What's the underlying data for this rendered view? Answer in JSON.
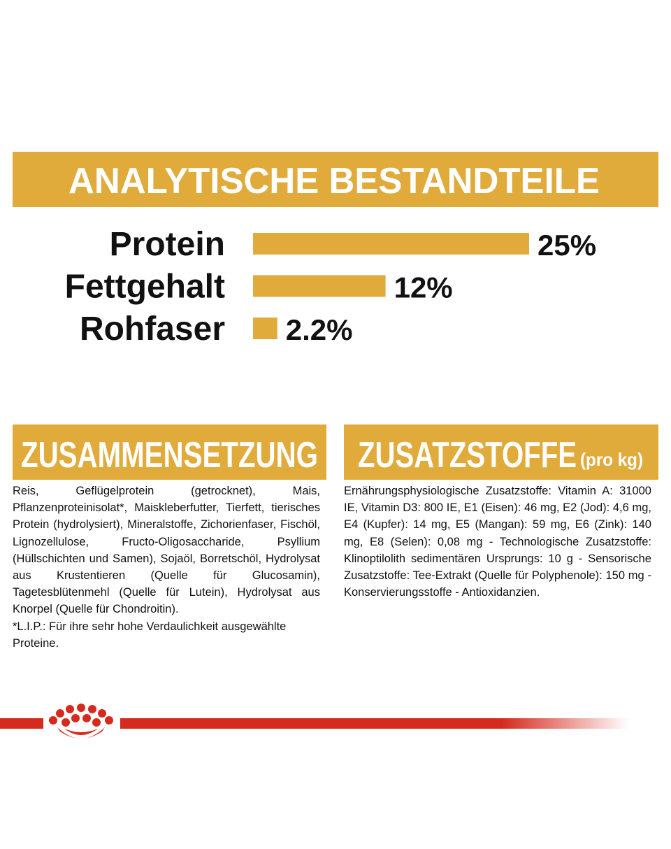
{
  "chart_data": {
    "type": "bar",
    "orientation": "horizontal",
    "title": "ANALYTISCHE BESTANDTEILE",
    "categories": [
      "Protein",
      "Fettgehalt",
      "Rohfaser"
    ],
    "values": [
      25,
      12,
      2.2
    ],
    "value_labels": [
      "25%",
      "12%",
      "2.2%"
    ],
    "color": "#e0ab3a"
  },
  "composition": {
    "title": "ZUSAMMENSETZUNG",
    "text": "Reis, Geflügelprotein (getrocknet), Mais, Pflanzenproteinisolat*, Maiskleberfutter, Tierfett, tierisches Protein (hydrolysiert), Mineralstoffe, Zichorienfaser, Fischöl, Lignozellulose, Fructo-Oligosaccharide, Psyllium (Hüllschichten und Samen), Sojaöl, Borretschöl, Hydrolysat aus Krustentieren (Quelle für Glucosamin), Tagetesblütenmehl (Quelle für Lutein), Hydrolysat aus Knorpel (Quelle für Chondroitin).",
    "footnote": "*L.I.P.: Für ihre sehr hohe Verdaulichkeit ausgewählte Proteine."
  },
  "additives": {
    "title": "ZUSATZSTOFFE",
    "title_suffix": "(pro kg)",
    "text": "Ernährungsphysiologische Zusatzstoffe: Vitamin A: 31000 IE, Vitamin D3: 800 IE, E1 (Eisen): 46 mg, E2 (Jod): 4,6 mg, E4 (Kupfer): 14 mg, E5 (Mangan): 59 mg, E6 (Zink): 140 mg, E8 (Selen): 0,08 mg - Technologische Zusatzstoffe: Klinoptilolith sedimentären Ursprungs: 10 g - Sensorische Zusatzstoffe: Tee-Extrakt (Quelle für Polyphenole): 150 mg - Konservierungsstoffe - Antioxidanzien."
  }
}
